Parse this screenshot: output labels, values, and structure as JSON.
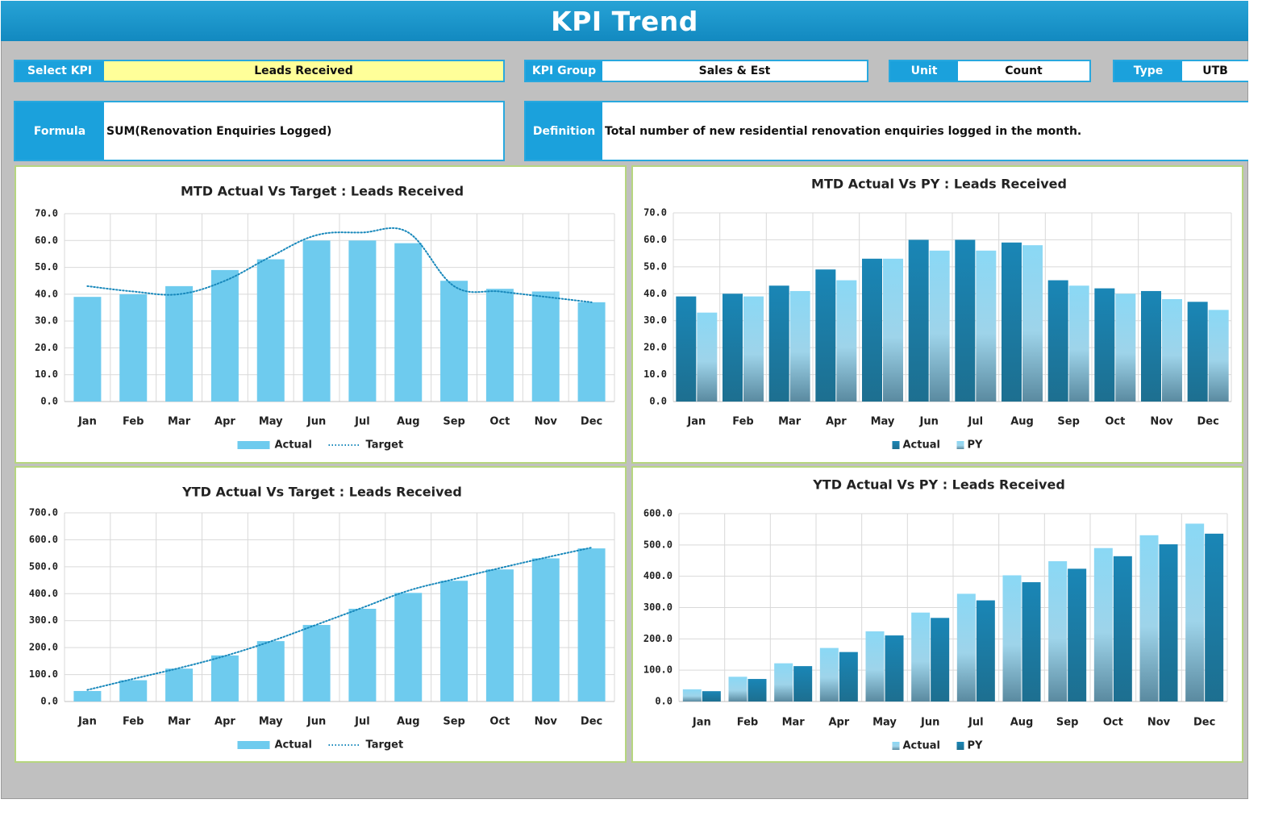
{
  "header": {
    "title": "KPI Trend"
  },
  "fields": {
    "select_kpi": {
      "label": "Select KPI",
      "value": "Leads Received"
    },
    "kpi_group": {
      "label": "KPI Group",
      "value": "Sales & Est"
    },
    "unit": {
      "label": "Unit",
      "value": "Count"
    },
    "type": {
      "label": "Type",
      "value": "UTB"
    },
    "formula": {
      "label": "Formula",
      "value": "SUM(Renovation Enquiries Logged)"
    },
    "definition": {
      "label": "Definition",
      "value": "Total number of new residential renovation enquiries logged in the month."
    }
  },
  "colors": {
    "header": "#1b96cc",
    "label_bg": "#1ba1dc",
    "select_value_bg": "#ffff99",
    "bar_light": "#6ecbee",
    "bar_dark": "#1a82b0",
    "target_line": "#1888bb",
    "panel_border": "#b6d67f",
    "page_bg": "#c0c0c0"
  },
  "chart_data": [
    {
      "id": "mtd_target",
      "type": "bar",
      "title": "MTD Actual Vs Target : Leads Received",
      "categories": [
        "Jan",
        "Feb",
        "Mar",
        "Apr",
        "May",
        "Jun",
        "Jul",
        "Aug",
        "Sep",
        "Oct",
        "Nov",
        "Dec"
      ],
      "series": [
        {
          "name": "Actual",
          "kind": "bar",
          "values": [
            39,
            40,
            43,
            49,
            53,
            60,
            60,
            59,
            45,
            42,
            41,
            37
          ]
        },
        {
          "name": "Target",
          "kind": "line",
          "style": "dotted smooth",
          "values": [
            43,
            41,
            40,
            45,
            54,
            62,
            63,
            63,
            43,
            41,
            39,
            37
          ]
        }
      ],
      "ylim": [
        0,
        70
      ],
      "yticks": [
        "0.0",
        "10.0",
        "20.0",
        "30.0",
        "40.0",
        "50.0",
        "60.0",
        "70.0"
      ],
      "grid": true,
      "legend": "bottom"
    },
    {
      "id": "mtd_py",
      "type": "bar",
      "title": "MTD Actual Vs PY : Leads Received",
      "categories": [
        "Jan",
        "Feb",
        "Mar",
        "Apr",
        "May",
        "Jun",
        "Jul",
        "Aug",
        "Sep",
        "Oct",
        "Nov",
        "Dec"
      ],
      "series": [
        {
          "name": "Actual",
          "kind": "bar",
          "values": [
            39,
            40,
            43,
            49,
            53,
            60,
            60,
            59,
            45,
            42,
            41,
            37
          ]
        },
        {
          "name": "PY",
          "kind": "bar",
          "values": [
            33,
            39,
            41,
            45,
            53,
            56,
            56,
            58,
            43,
            40,
            38,
            34
          ]
        }
      ],
      "ylim": [
        0,
        70
      ],
      "yticks": [
        "0.0",
        "10.0",
        "20.0",
        "30.0",
        "40.0",
        "50.0",
        "60.0",
        "70.0"
      ],
      "grid": true,
      "legend": "bottom"
    },
    {
      "id": "ytd_target",
      "type": "bar",
      "title": "YTD Actual Vs Target : Leads Received",
      "categories": [
        "Jan",
        "Feb",
        "Mar",
        "Apr",
        "May",
        "Jun",
        "Jul",
        "Aug",
        "Sep",
        "Oct",
        "Nov",
        "Dec"
      ],
      "series": [
        {
          "name": "Actual",
          "kind": "bar",
          "values": [
            39,
            79,
            122,
            171,
            224,
            284,
            344,
            403,
            448,
            490,
            531,
            568
          ]
        },
        {
          "name": "Target",
          "kind": "line",
          "style": "dotted smooth",
          "values": [
            43,
            84,
            124,
            169,
            223,
            285,
            348,
            411,
            454,
            495,
            534,
            571
          ]
        }
      ],
      "ylim": [
        0,
        700
      ],
      "yticks": [
        "0.0",
        "100.0",
        "200.0",
        "300.0",
        "400.0",
        "500.0",
        "600.0",
        "700.0"
      ],
      "grid": true,
      "legend": "bottom"
    },
    {
      "id": "ytd_py",
      "type": "bar",
      "title": "YTD Actual Vs PY : Leads Received",
      "categories": [
        "Jan",
        "Feb",
        "Mar",
        "Apr",
        "May",
        "Jun",
        "Jul",
        "Aug",
        "Sep",
        "Oct",
        "Nov",
        "Dec"
      ],
      "series": [
        {
          "name": "Actual",
          "kind": "bar",
          "values": [
            39,
            79,
            122,
            171,
            224,
            284,
            344,
            403,
            448,
            490,
            531,
            568
          ]
        },
        {
          "name": "PY",
          "kind": "bar",
          "values": [
            33,
            72,
            113,
            158,
            211,
            267,
            323,
            381,
            424,
            464,
            502,
            536
          ]
        }
      ],
      "ylim": [
        0,
        600
      ],
      "yticks": [
        "0.0",
        "100.0",
        "200.0",
        "300.0",
        "400.0",
        "500.0",
        "600.0"
      ],
      "grid": true,
      "legend": "bottom"
    }
  ]
}
